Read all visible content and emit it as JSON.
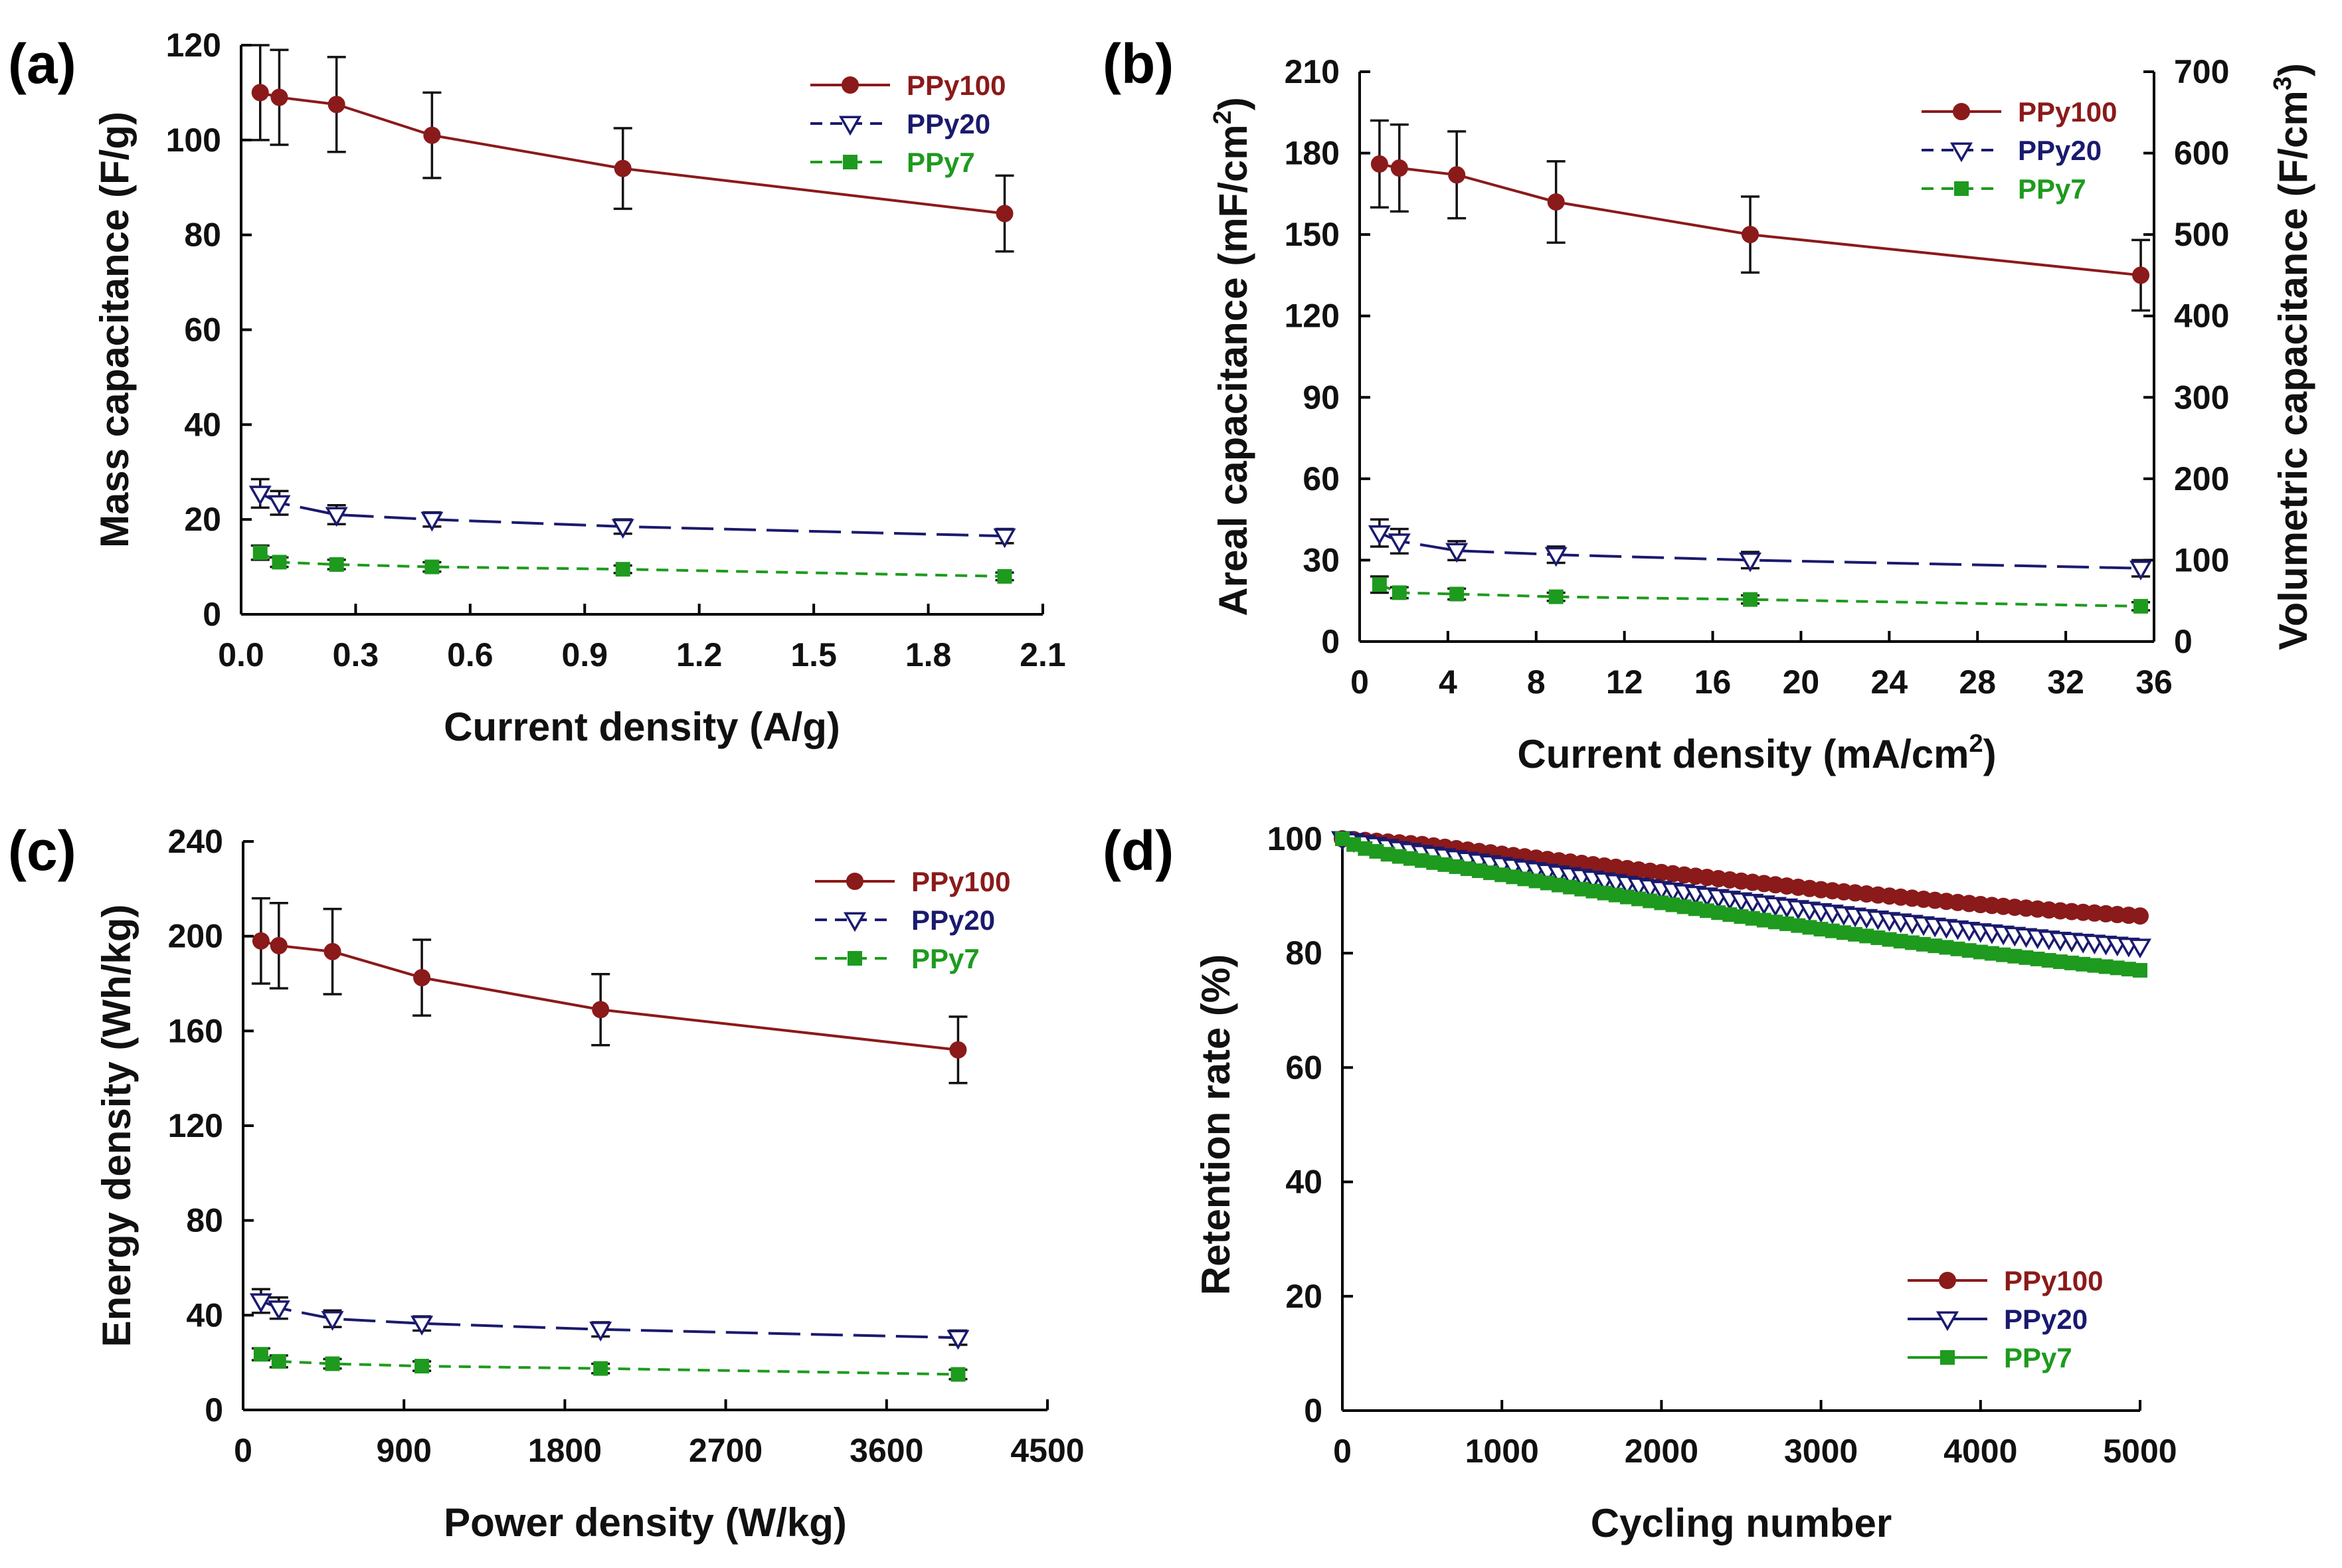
{
  "chart_data": [
    {
      "panel": "(a)",
      "type": "line",
      "xlabel": "Current density (A/g)",
      "ylabel": "Mass capacitance (F/g)",
      "xlim": [
        0.0,
        2.1
      ],
      "ylim": [
        0,
        120
      ],
      "xticks": [
        "0.0",
        "0.3",
        "0.6",
        "0.9",
        "1.2",
        "1.5",
        "1.8",
        "2.1"
      ],
      "yticks": [
        "0",
        "20",
        "40",
        "60",
        "80",
        "100",
        "120"
      ],
      "legend_position": "top-right",
      "series": [
        {
          "name": "PPy100",
          "color": "#8b1a1a",
          "dash": "solid",
          "marker": "circle",
          "x": [
            0.05,
            0.1,
            0.25,
            0.5,
            1.0,
            2.0
          ],
          "y": [
            110,
            109,
            107.5,
            101,
            94,
            84.5
          ],
          "err": [
            10,
            10,
            10,
            9,
            8.5,
            8
          ]
        },
        {
          "name": "PPy20",
          "color": "#1a1a6e",
          "dash": "long-dash",
          "marker": "triangle-down",
          "x": [
            0.05,
            0.1,
            0.25,
            0.5,
            1.0,
            2.0
          ],
          "y": [
            25.5,
            23.5,
            21,
            20,
            18.5,
            16.5
          ],
          "err": [
            3,
            2.5,
            2,
            1.5,
            1.5,
            1.5
          ]
        },
        {
          "name": "PPy7",
          "color": "#1e9a1e",
          "dash": "short-dash",
          "marker": "square",
          "x": [
            0.05,
            0.1,
            0.25,
            0.5,
            1.0,
            2.0
          ],
          "y": [
            13,
            11,
            10.5,
            10,
            9.5,
            8
          ],
          "err": [
            1.5,
            1,
            1,
            1,
            0.8,
            0.8
          ]
        }
      ]
    },
    {
      "panel": "(b)",
      "type": "line",
      "xlabel": "Current density (mA/cm",
      "xlabel_sup": "2",
      "xlabel_end": ")",
      "ylabel": "Areal capacitance (mF/cm",
      "ylabel_sup": "2",
      "ylabel_end": ")",
      "y2label": "Volumetric capacitance (F/cm",
      "y2label_sup": "3",
      "y2label_end": ")",
      "xlim": [
        0,
        36
      ],
      "ylim": [
        0,
        210
      ],
      "y2lim": [
        0,
        700
      ],
      "xticks": [
        "0",
        "4",
        "8",
        "12",
        "16",
        "20",
        "24",
        "28",
        "32",
        "36"
      ],
      "yticks": [
        "0",
        "30",
        "60",
        "90",
        "120",
        "150",
        "180",
        "210"
      ],
      "y2ticks": [
        "0",
        "100",
        "200",
        "300",
        "400",
        "500",
        "600",
        "700"
      ],
      "legend_position": "top-right",
      "series": [
        {
          "name": "PPy100",
          "color": "#8b1a1a",
          "dash": "solid",
          "marker": "circle",
          "x": [
            0.9,
            1.8,
            4.4,
            8.9,
            17.7,
            35.4
          ],
          "y": [
            176,
            174.5,
            172,
            162,
            150,
            135
          ],
          "err": [
            16,
            16,
            16,
            15,
            14,
            13
          ]
        },
        {
          "name": "PPy20",
          "color": "#1a1a6e",
          "dash": "long-dash",
          "marker": "triangle-down",
          "x": [
            0.9,
            1.8,
            4.4,
            8.9,
            17.7,
            35.4
          ],
          "y": [
            40,
            37,
            33.5,
            32,
            30,
            27
          ],
          "err": [
            5,
            4.5,
            3.5,
            3,
            3,
            3
          ]
        },
        {
          "name": "PPy7",
          "color": "#1e9a1e",
          "dash": "short-dash",
          "marker": "square",
          "x": [
            0.9,
            1.8,
            4.4,
            8.9,
            17.7,
            35.4
          ],
          "y": [
            21,
            18,
            17.5,
            16.5,
            15.5,
            13
          ],
          "err": [
            3,
            2,
            2,
            1.5,
            1.5,
            1.5
          ]
        }
      ]
    },
    {
      "panel": "(c)",
      "type": "line",
      "xlabel": "Power density (W/kg)",
      "ylabel": "Energy density (Wh/kg)",
      "xlim": [
        0,
        4500
      ],
      "ylim": [
        0,
        240
      ],
      "xticks": [
        "0",
        "900",
        "1800",
        "2700",
        "3600",
        "4500"
      ],
      "yticks": [
        "0",
        "40",
        "80",
        "120",
        "160",
        "200",
        "240"
      ],
      "legend_position": "top-right",
      "series": [
        {
          "name": "PPy100",
          "color": "#8b1a1a",
          "dash": "solid",
          "marker": "circle",
          "x": [
            100,
            200,
            500,
            1000,
            2000,
            4000
          ],
          "y": [
            198,
            196,
            193.5,
            182.5,
            169,
            152
          ],
          "err": [
            18,
            18,
            18,
            16,
            15,
            14
          ]
        },
        {
          "name": "PPy20",
          "color": "#1a1a6e",
          "dash": "long-dash",
          "marker": "triangle-down",
          "x": [
            100,
            200,
            500,
            1000,
            2000,
            4000
          ],
          "y": [
            46,
            43,
            38.5,
            36.5,
            34,
            30.5
          ],
          "err": [
            5,
            4.5,
            3.5,
            3,
            3,
            3
          ]
        },
        {
          "name": "PPy7",
          "color": "#1e9a1e",
          "dash": "short-dash",
          "marker": "square",
          "x": [
            100,
            200,
            500,
            1000,
            2000,
            4000
          ],
          "y": [
            23.5,
            20.5,
            19.5,
            18.5,
            17.5,
            15
          ],
          "err": [
            2.5,
            2.5,
            2,
            2,
            2,
            2
          ]
        }
      ]
    },
    {
      "panel": "(d)",
      "type": "line",
      "xlabel": "Cycling number",
      "ylabel": "Retention rate (%)",
      "xlim": [
        0,
        5000
      ],
      "ylim": [
        0,
        100
      ],
      "xticks": [
        "0",
        "1000",
        "2000",
        "3000",
        "4000",
        "5000"
      ],
      "yticks": [
        "0",
        "20",
        "40",
        "60",
        "80",
        "100"
      ],
      "legend_position": "bottom-right",
      "series": [
        {
          "name": "PPy100",
          "color": "#8b1a1a",
          "dash": "solid",
          "marker": "circle",
          "x": [
            0,
            500,
            1000,
            1500,
            2000,
            2500,
            3000,
            3500,
            4000,
            4500,
            5000
          ],
          "y": [
            100,
            99,
            97.3,
            95.7,
            94.1,
            92.6,
            91.1,
            89.8,
            88.5,
            87.4,
            86.5
          ]
        },
        {
          "name": "PPy20",
          "color": "#1a1a6e",
          "dash": "solid",
          "marker": "triangle-down",
          "x": [
            0,
            500,
            1000,
            1500,
            2000,
            2500,
            3000,
            3500,
            4000,
            4500,
            5000
          ],
          "y": [
            100,
            97.6,
            95.5,
            93.4,
            91.3,
            89.3,
            87.4,
            85.6,
            83.9,
            82.4,
            81.2
          ]
        },
        {
          "name": "PPy7",
          "color": "#1e9a1e",
          "dash": "solid",
          "marker": "square",
          "x": [
            0,
            100,
            300,
            500,
            1000,
            1500,
            2000,
            2500,
            3000,
            3500,
            4000,
            4500,
            5000
          ],
          "y": [
            100,
            98.6,
            97.2,
            96.2,
            93.7,
            91.2,
            88.8,
            86.4,
            84.2,
            82.1,
            80.2,
            78.5,
            77
          ]
        }
      ]
    }
  ]
}
